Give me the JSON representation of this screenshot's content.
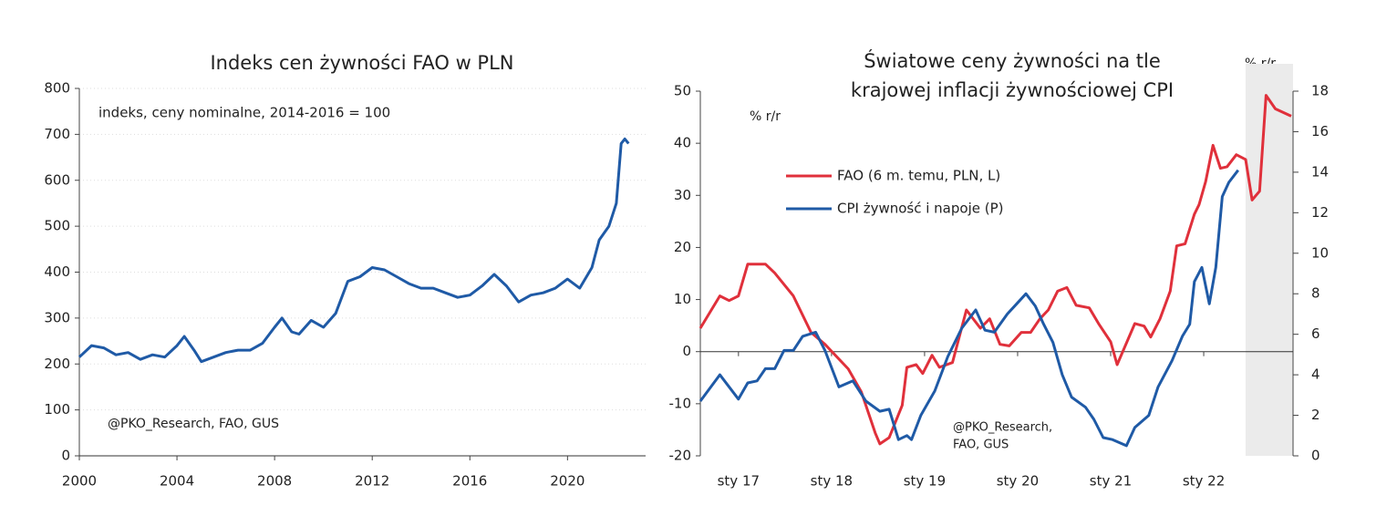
{
  "chart_data": [
    {
      "type": "line",
      "title": "Indeks cen żywności FAO w PLN",
      "annotation": "indeks, ceny nominalne, 2014-2016 = 100",
      "source": "@PKO_Research, FAO, GUS",
      "color": "#1f5aa6",
      "grid": true,
      "xlim": [
        2000,
        2023.2
      ],
      "xticks": [
        2000,
        2004,
        2008,
        2012,
        2016,
        2020
      ],
      "ylim": [
        0,
        800
      ],
      "yticks": [
        0,
        100,
        200,
        300,
        400,
        500,
        600,
        700,
        800
      ],
      "x": [
        2000,
        2000.5,
        2001,
        2001.5,
        2002,
        2002.5,
        2003,
        2003.5,
        2004,
        2004.3,
        2004.7,
        2005,
        2005.5,
        2006,
        2006.5,
        2007,
        2007.5,
        2008,
        2008.3,
        2008.7,
        2009,
        2009.5,
        2010,
        2010.5,
        2011,
        2011.5,
        2012,
        2012.5,
        2013,
        2013.5,
        2014,
        2014.5,
        2015,
        2015.5,
        2016,
        2016.5,
        2017,
        2017.5,
        2018,
        2018.5,
        2019,
        2019.5,
        2020,
        2020.5,
        2021,
        2021.3,
        2021.7,
        2022,
        2022.2,
        2022.35,
        2022.5
      ],
      "values": [
        215,
        240,
        235,
        220,
        225,
        210,
        220,
        215,
        240,
        260,
        230,
        205,
        215,
        225,
        230,
        230,
        245,
        280,
        300,
        270,
        265,
        295,
        280,
        310,
        380,
        390,
        410,
        405,
        390,
        375,
        365,
        365,
        355,
        345,
        350,
        370,
        395,
        370,
        335,
        350,
        355,
        365,
        385,
        365,
        410,
        470,
        500,
        550,
        680,
        690,
        680
      ]
    },
    {
      "type": "line",
      "title": [
        "Światowe ceny żywności na tle",
        "krajowej inflacji żywnościowej CPI"
      ],
      "ylabel": "% r/r",
      "y2label": "% r/r",
      "source": [
        "@PKO_Research,",
        "FAO, GUS"
      ],
      "legend": "upper left",
      "zero_line": true,
      "highlight_x": [
        2022.45,
        2022.96
      ],
      "xlim": [
        2016.59,
        2022.96
      ],
      "xticks": [
        {
          "value": 2017,
          "label": "sty 17"
        },
        {
          "value": 2018,
          "label": "sty 18"
        },
        {
          "value": 2019,
          "label": "sty 19"
        },
        {
          "value": 2020,
          "label": "sty 20"
        },
        {
          "value": 2021,
          "label": "sty 21"
        },
        {
          "value": 2022,
          "label": "sty 22"
        }
      ],
      "ylim": [
        -20,
        50
      ],
      "yticks": [
        -20,
        -10,
        0,
        10,
        20,
        30,
        40,
        50
      ],
      "y2lim": [
        0,
        18
      ],
      "y2ticks": [
        0,
        2,
        4,
        6,
        8,
        10,
        12,
        14,
        16,
        18
      ],
      "series": [
        {
          "name": "FAO (6 m. temu, PLN, L)",
          "color": "#e0303b",
          "x": [
            2016.59,
            2016.8,
            2016.9,
            2017.0,
            2017.1,
            2017.29,
            2017.39,
            2017.59,
            2017.78,
            2017.93,
            2018.18,
            2018.32,
            2018.47,
            2018.52,
            2018.62,
            2018.76,
            2018.81,
            2018.91,
            2018.98,
            2019.08,
            2019.16,
            2019.3,
            2019.45,
            2019.6,
            2019.7,
            2019.81,
            2019.91,
            2020.04,
            2020.14,
            2020.24,
            2020.33,
            2020.43,
            2020.53,
            2020.63,
            2020.77,
            2020.87,
            2021.0,
            2021.07,
            2021.26,
            2021.36,
            2021.43,
            2021.53,
            2021.64,
            2021.71,
            2021.8,
            2021.9,
            2021.95,
            2022.02,
            2022.1,
            2022.18,
            2022.25,
            2022.35,
            2022.45,
            2022.52,
            2022.6,
            2022.67,
            2022.77,
            2022.94
          ],
          "values": [
            4.5,
            10.7,
            9.8,
            10.7,
            16.8,
            16.8,
            15.1,
            10.7,
            3.7,
            1.4,
            -3.3,
            -7.7,
            -15.6,
            -17.7,
            -16.5,
            -10.3,
            -3,
            -2.5,
            -4.2,
            -0.7,
            -3,
            -2.1,
            8,
            4.5,
            6.3,
            1.4,
            1.1,
            3.7,
            3.7,
            6.3,
            8,
            11.6,
            12.3,
            8.9,
            8.4,
            5.4,
            1.9,
            -2.5,
            5.4,
            4.9,
            2.8,
            6.3,
            11.6,
            20.3,
            20.7,
            26.4,
            28.2,
            32.6,
            39.6,
            35.2,
            35.5,
            37.8,
            36.9,
            29.1,
            30.8,
            49.2,
            46.6,
            45.2
          ]
        },
        {
          "name": "CPI żywność i napoje (P)",
          "color": "#1f5aa6",
          "axis": "y2",
          "x": [
            2016.59,
            2016.8,
            2016.9,
            2017.0,
            2017.1,
            2017.2,
            2017.29,
            2017.39,
            2017.49,
            2017.59,
            2017.69,
            2017.83,
            2017.93,
            2018.08,
            2018.23,
            2018.37,
            2018.52,
            2018.62,
            2018.72,
            2018.81,
            2018.86,
            2018.96,
            2019.11,
            2019.25,
            2019.4,
            2019.55,
            2019.65,
            2019.75,
            2019.89,
            2019.99,
            2020.09,
            2020.19,
            2020.28,
            2020.38,
            2020.48,
            2020.58,
            2020.73,
            2020.82,
            2020.92,
            2021.02,
            2021.17,
            2021.26,
            2021.41,
            2021.51,
            2021.66,
            2021.77,
            2021.85,
            2021.9,
            2021.98,
            2022.06,
            2022.13,
            2022.2,
            2022.27,
            2022.37
          ],
          "values": [
            2.7,
            4,
            3.4,
            2.8,
            3.6,
            3.7,
            4.3,
            4.3,
            5.2,
            5.2,
            5.9,
            6.1,
            5.2,
            3.4,
            3.7,
            2.7,
            2.2,
            2.3,
            0.8,
            1,
            0.8,
            2,
            3.2,
            4.9,
            6.3,
            7.2,
            6.2,
            6.1,
            7,
            7.5,
            8,
            7.4,
            6.5,
            5.6,
            4,
            2.9,
            2.4,
            1.8,
            0.9,
            0.8,
            0.5,
            1.4,
            2,
            3.4,
            4.7,
            5.9,
            6.5,
            8.6,
            9.3,
            7.5,
            9.3,
            12.8,
            13.5,
            14.1
          ]
        }
      ]
    }
  ]
}
